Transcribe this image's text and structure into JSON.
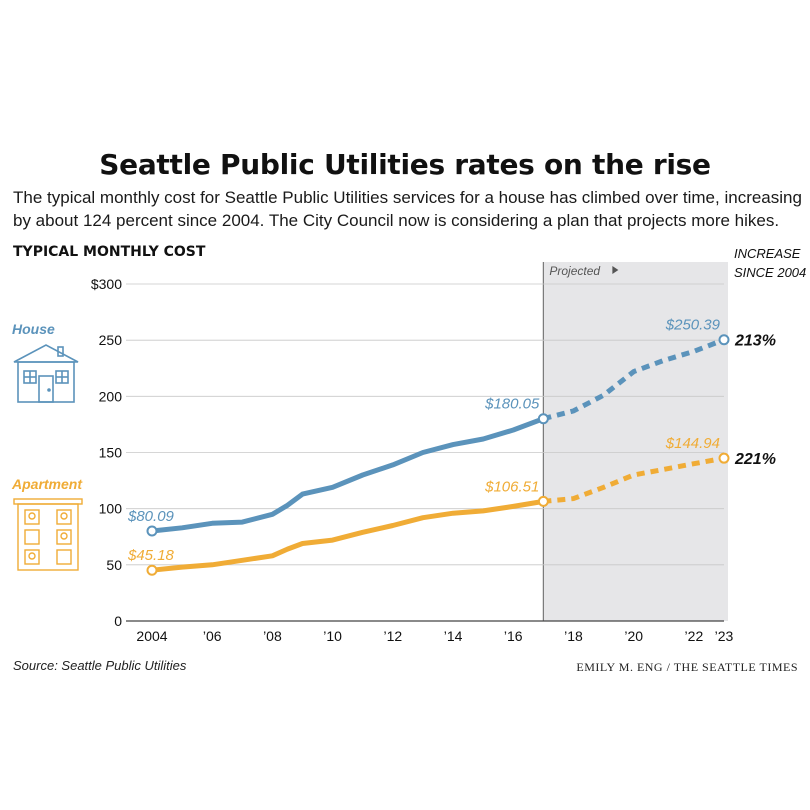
{
  "chart_data": {
    "type": "line",
    "title": "Seattle Public Utilities rates on the rise",
    "subtitle": "The typical monthly cost for Seattle Public Utilities services for a house has climbed over time, increasing by about 124 percent since 2004. The City Council now is considering a plan that projects more hikes.",
    "ylabel": "TYPICAL MONTHLY COST",
    "right_label_line1": "INCREASE",
    "right_label_line2": "SINCE 2004",
    "projected_label": "Projected",
    "projected_start": 2017,
    "xlim": [
      2004,
      2023
    ],
    "ylim": [
      0,
      300
    ],
    "y_ticks": [
      {
        "value": 0,
        "label": "0"
      },
      {
        "value": 50,
        "label": "50"
      },
      {
        "value": 100,
        "label": "100"
      },
      {
        "value": 150,
        "label": "150"
      },
      {
        "value": 200,
        "label": "200"
      },
      {
        "value": 250,
        "label": "250"
      },
      {
        "value": 300,
        "label": "$300"
      }
    ],
    "x_ticks": [
      {
        "value": 2004,
        "label": "2004"
      },
      {
        "value": 2006,
        "label": "’06"
      },
      {
        "value": 2008,
        "label": "’08"
      },
      {
        "value": 2010,
        "label": "’10"
      },
      {
        "value": 2012,
        "label": "’12"
      },
      {
        "value": 2014,
        "label": "’14"
      },
      {
        "value": 2016,
        "label": "’16"
      },
      {
        "value": 2018,
        "label": "’18"
      },
      {
        "value": 2020,
        "label": "’20"
      },
      {
        "value": 2022,
        "label": "’22"
      },
      {
        "value": 2023,
        "label": "’23"
      }
    ],
    "series": [
      {
        "name": "House",
        "color": "#5b93bb",
        "increase": "213%",
        "x": [
          2004,
          2005,
          2006,
          2007,
          2008,
          2008.5,
          2009,
          2010,
          2011,
          2012,
          2013,
          2014,
          2015,
          2016,
          2017,
          2018,
          2019,
          2020,
          2021,
          2022,
          2023
        ],
        "values": [
          80.09,
          83,
          87,
          88,
          95,
          103,
          113,
          119,
          130,
          139,
          150,
          157,
          162,
          170,
          180.05,
          187,
          201,
          222,
          232,
          240,
          250.39
        ],
        "labels": [
          {
            "x": 2004,
            "text": "$80.09"
          },
          {
            "x": 2017,
            "text": "$180.05"
          },
          {
            "x": 2023,
            "text": "$250.39"
          }
        ]
      },
      {
        "name": "Apartment",
        "color": "#f0ac36",
        "increase": "221%",
        "x": [
          2004,
          2005,
          2006,
          2007,
          2008,
          2008.5,
          2009,
          2010,
          2011,
          2012,
          2013,
          2014,
          2015,
          2016,
          2017,
          2018,
          2019,
          2020,
          2021,
          2022,
          2023
        ],
        "values": [
          45.18,
          48,
          50,
          54,
          58,
          64,
          69,
          72,
          79,
          85,
          92,
          96,
          98,
          102,
          106.51,
          109,
          119,
          130,
          135,
          140,
          144.94
        ],
        "labels": [
          {
            "x": 2004,
            "text": "$45.18"
          },
          {
            "x": 2017,
            "text": "$106.51"
          },
          {
            "x": 2023,
            "text": "$144.94"
          }
        ]
      }
    ]
  },
  "footer": {
    "source": "Source: Seattle Public Utilities",
    "credit": "EMILY M. ENG / THE SEATTLE TIMES"
  }
}
